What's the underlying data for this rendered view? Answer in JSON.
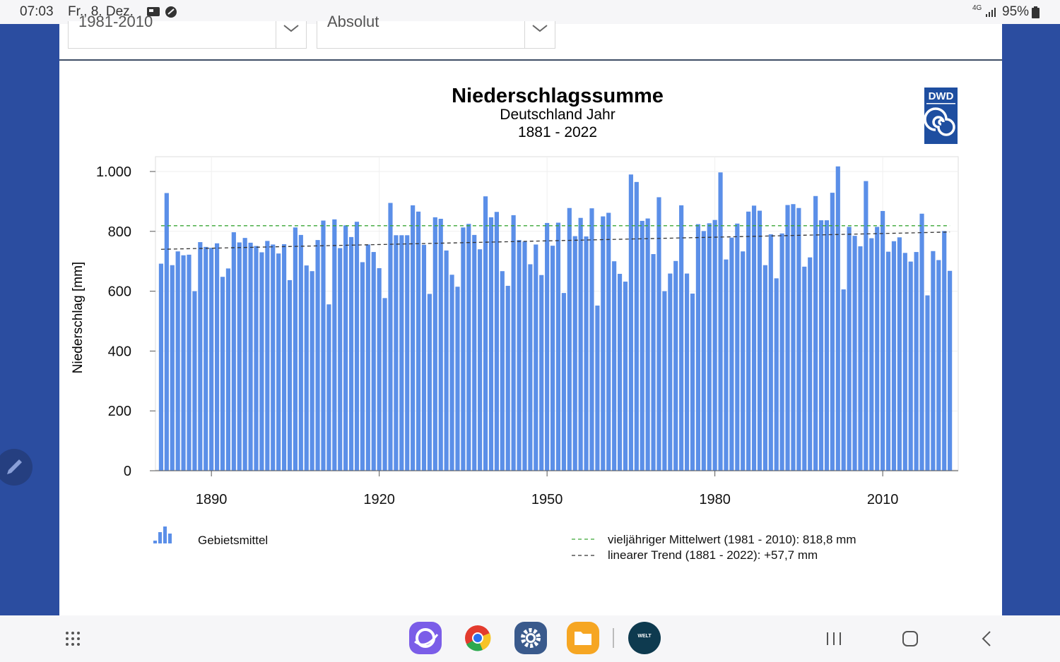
{
  "status": {
    "time": "07:03",
    "date": "Fr., 8. Dez.",
    "network": "4G",
    "battery": "95%"
  },
  "selectors": {
    "period": "1981-2010",
    "mode": "Absolut"
  },
  "chart_data": {
    "type": "bar",
    "title": "Niederschlagssumme",
    "subtitle": "Deutschland Jahr",
    "period": "1881 - 2022",
    "ylabel": "Niederschlag [mm]",
    "ylim": [
      0,
      1000
    ],
    "yticks": [
      0,
      200,
      400,
      600,
      800,
      1000
    ],
    "ytick_labels": [
      "0",
      "200",
      "400",
      "600",
      "800",
      "1.000"
    ],
    "xticks": [
      1890,
      1920,
      1950,
      1980,
      2010
    ],
    "xlim": [
      1880,
      2023.5
    ],
    "x_start": 1881,
    "values": [
      692,
      928,
      687,
      733,
      720,
      722,
      600,
      764,
      748,
      745,
      760,
      648,
      676,
      797,
      763,
      778,
      762,
      751,
      730,
      768,
      756,
      726,
      757,
      637,
      813,
      788,
      686,
      667,
      771,
      836,
      556,
      840,
      744,
      820,
      781,
      832,
      697,
      756,
      731,
      677,
      577,
      895,
      787,
      787,
      787,
      887,
      866,
      755,
      591,
      847,
      842,
      736,
      655,
      615,
      813,
      825,
      788,
      740,
      917,
      847,
      865,
      667,
      618,
      854,
      771,
      766,
      690,
      756,
      654,
      828,
      752,
      829,
      594,
      878,
      784,
      845,
      783,
      877,
      552,
      850,
      862,
      700,
      658,
      632,
      990,
      965,
      835,
      843,
      724,
      914,
      600,
      659,
      701,
      887,
      659,
      592,
      824,
      801,
      827,
      838,
      997,
      706,
      779,
      826,
      733,
      866,
      886,
      869,
      687,
      790,
      643,
      793,
      888,
      891,
      878,
      682,
      713,
      918,
      837,
      837,
      929,
      1017,
      606,
      815,
      785,
      750,
      968,
      777,
      815,
      868,
      732,
      767,
      780,
      728,
      699,
      731,
      859,
      586,
      734,
      704,
      801,
      668
    ],
    "mean": {
      "label": "vieljähriger Mittelwert (1981 - 2010): 818,8 mm",
      "value": 818.8,
      "color": "#3aa635"
    },
    "trend": {
      "label": "linearer Trend (1881 - 2022): +57,7 mm",
      "start": 740,
      "end": 797.7,
      "color": "#333333"
    },
    "series_name": "Gebietsmittel",
    "bar_color": "#5b8fe8",
    "logo": "DWD"
  },
  "dock": [
    "samsung-internet-icon",
    "chrome-icon",
    "settings-icon",
    "my-files-icon",
    "welt-icon"
  ],
  "dock_welt_label": "WELT",
  "colors": {
    "background": "#2b4da0",
    "chrome": "#f6f6f8"
  }
}
